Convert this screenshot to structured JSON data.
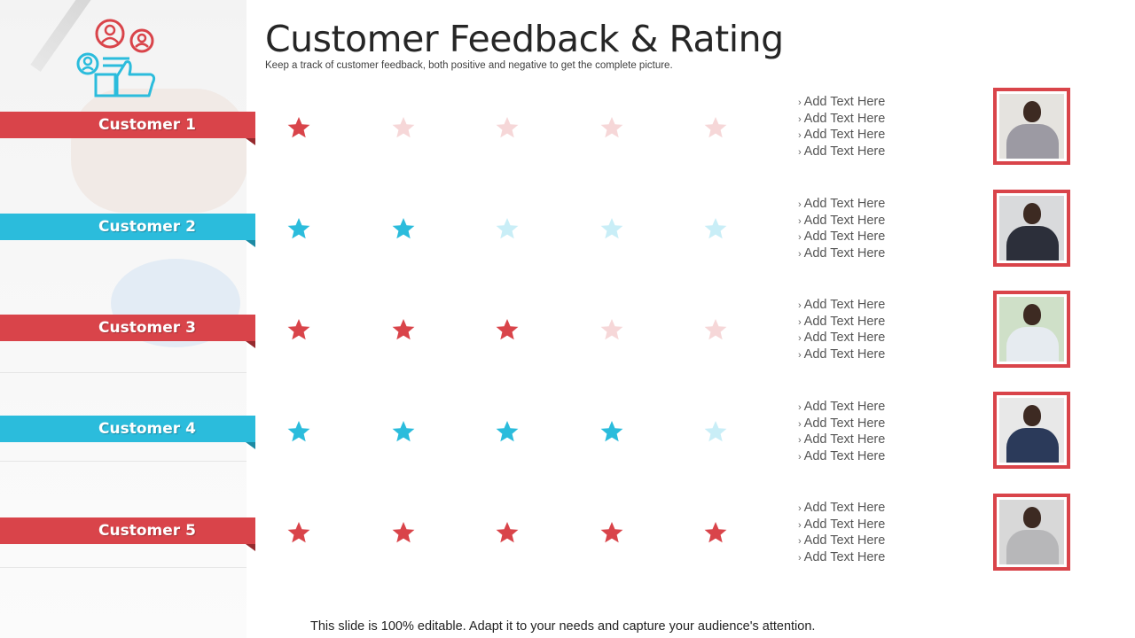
{
  "slide": {
    "title": "Customer Feedback & Rating",
    "subtitle": "Keep a track of customer feedback, both positive and negative to get the complete picture.",
    "footer": "This slide is 100% editable. Adapt it to your needs and capture your audience's attention."
  },
  "colors": {
    "red": "#d9444a",
    "red_light": "#f6d7d8",
    "blue": "#2bbcdc",
    "blue_light": "#c9eef7"
  },
  "header_icon": "customer-feedback-thumbs-up-icon",
  "customers": [
    {
      "label": "Customer 1",
      "theme": "red",
      "rating": 1,
      "max_rating": 5,
      "feedback": [
        "Add Text Here",
        "Add Text Here",
        "Add Text Here",
        "Add Text Here"
      ],
      "photo_icon": "man-grey-suit-photo"
    },
    {
      "label": "Customer 2",
      "theme": "blue",
      "rating": 2,
      "max_rating": 5,
      "feedback": [
        "Add Text Here",
        "Add Text Here",
        "Add Text Here",
        "Add Text Here"
      ],
      "photo_icon": "man-dark-suit-photo"
    },
    {
      "label": "Customer 3",
      "theme": "red",
      "rating": 3,
      "max_rating": 5,
      "feedback": [
        "Add Text Here",
        "Add Text Here",
        "Add Text Here",
        "Add Text Here"
      ],
      "photo_icon": "man-white-shirt-photo"
    },
    {
      "label": "Customer 4",
      "theme": "blue",
      "rating": 4,
      "max_rating": 5,
      "feedback": [
        "Add Text Here",
        "Add Text Here",
        "Add Text Here",
        "Add Text Here"
      ],
      "photo_icon": "man-blue-jacket-photo"
    },
    {
      "label": "Customer 5",
      "theme": "red",
      "rating": 5,
      "max_rating": 5,
      "feedback": [
        "Add Text Here",
        "Add Text Here",
        "Add Text Here",
        "Add Text Here"
      ],
      "photo_icon": "woman-grey-blazer-photo"
    }
  ]
}
